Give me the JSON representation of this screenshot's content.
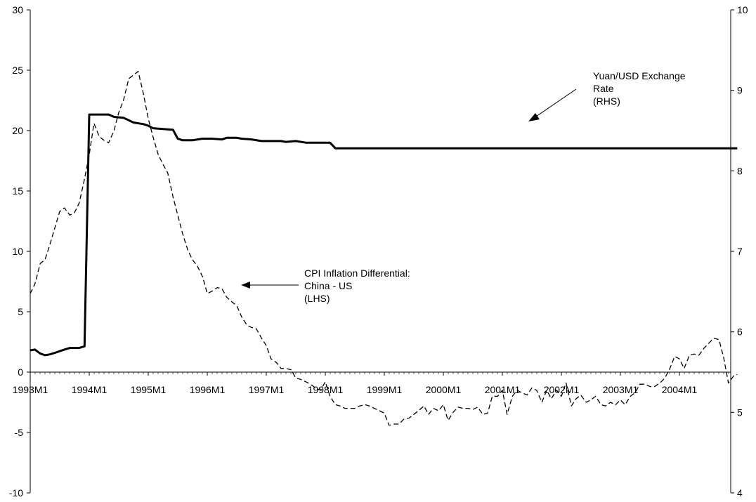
{
  "chart_data": {
    "type": "line",
    "x_ticks": [
      "1993M1",
      "1994M1",
      "1995M1",
      "1996M1",
      "1997M1",
      "1998M1",
      "1999M1",
      "2000M1",
      "2001M1",
      "2002M1",
      "2003M1",
      "2004M1"
    ],
    "left_axis": {
      "ylim": [
        -10,
        30
      ],
      "ticks": [
        "30",
        "25",
        "20",
        "15",
        "10",
        "5",
        "0",
        "-5",
        "-10"
      ]
    },
    "right_axis": {
      "ylim": [
        4,
        10
      ],
      "ticks": [
        "10",
        "9",
        "8",
        "7",
        "6",
        "5",
        "4"
      ]
    },
    "annotations": [
      {
        "lines": [
          "Yuan/USD Exchange",
          "Rate",
          "(RHS)"
        ]
      },
      {
        "lines": [
          "CPI Inflation Differential:",
          "China - US",
          "(LHS)"
        ]
      }
    ],
    "series": [
      {
        "axis": "right",
        "style": "solid",
        "points": [
          [
            1993.0,
            5.77
          ],
          [
            1993.08,
            5.78
          ],
          [
            1993.17,
            5.73
          ],
          [
            1993.25,
            5.71
          ],
          [
            1993.33,
            5.72
          ],
          [
            1993.42,
            5.74
          ],
          [
            1993.5,
            5.76
          ],
          [
            1993.58,
            5.78
          ],
          [
            1993.67,
            5.8
          ],
          [
            1993.75,
            5.8
          ],
          [
            1993.83,
            5.8
          ],
          [
            1993.92,
            5.82
          ],
          [
            1994.0,
            8.7
          ],
          [
            1994.17,
            8.7
          ],
          [
            1994.33,
            8.7
          ],
          [
            1994.42,
            8.67
          ],
          [
            1994.58,
            8.66
          ],
          [
            1994.75,
            8.6
          ],
          [
            1994.92,
            8.58
          ],
          [
            1995.0,
            8.56
          ],
          [
            1995.08,
            8.53
          ],
          [
            1995.25,
            8.52
          ],
          [
            1995.42,
            8.51
          ],
          [
            1995.5,
            8.4
          ],
          [
            1995.58,
            8.38
          ],
          [
            1995.75,
            8.38
          ],
          [
            1995.92,
            8.4
          ],
          [
            1996.08,
            8.4
          ],
          [
            1996.25,
            8.39
          ],
          [
            1996.33,
            8.41
          ],
          [
            1996.5,
            8.41
          ],
          [
            1996.58,
            8.4
          ],
          [
            1996.75,
            8.39
          ],
          [
            1996.92,
            8.37
          ],
          [
            1997.08,
            8.37
          ],
          [
            1997.25,
            8.37
          ],
          [
            1997.33,
            8.36
          ],
          [
            1997.5,
            8.37
          ],
          [
            1997.67,
            8.35
          ],
          [
            1997.83,
            8.35
          ],
          [
            1998.0,
            8.35
          ],
          [
            1998.08,
            8.35
          ],
          [
            1998.17,
            8.28
          ],
          [
            2000.0,
            8.28
          ],
          [
            2002.0,
            8.28
          ],
          [
            2004.0,
            8.28
          ],
          [
            2004.98,
            8.28
          ]
        ]
      },
      {
        "axis": "left",
        "style": "dashed",
        "points": [
          [
            1993.0,
            6.5
          ],
          [
            1993.08,
            7.3
          ],
          [
            1993.17,
            9.0
          ],
          [
            1993.25,
            9.3
          ],
          [
            1993.33,
            10.5
          ],
          [
            1993.42,
            12.0
          ],
          [
            1993.5,
            13.3
          ],
          [
            1993.58,
            13.6
          ],
          [
            1993.67,
            13.0
          ],
          [
            1993.75,
            13.2
          ],
          [
            1993.83,
            14.0
          ],
          [
            1993.92,
            16.0
          ],
          [
            1994.0,
            18.0
          ],
          [
            1994.08,
            20.6
          ],
          [
            1994.17,
            19.5
          ],
          [
            1994.25,
            19.2
          ],
          [
            1994.33,
            19.0
          ],
          [
            1994.42,
            20.0
          ],
          [
            1994.5,
            21.5
          ],
          [
            1994.58,
            22.5
          ],
          [
            1994.67,
            24.3
          ],
          [
            1994.75,
            24.6
          ],
          [
            1994.83,
            24.9
          ],
          [
            1994.92,
            23.0
          ],
          [
            1995.0,
            21.0
          ],
          [
            1995.08,
            19.5
          ],
          [
            1995.17,
            18.0
          ],
          [
            1995.25,
            17.2
          ],
          [
            1995.33,
            16.5
          ],
          [
            1995.42,
            14.5
          ],
          [
            1995.5,
            13.0
          ],
          [
            1995.58,
            11.5
          ],
          [
            1995.67,
            10.1
          ],
          [
            1995.75,
            9.3
          ],
          [
            1995.83,
            8.8
          ],
          [
            1995.92,
            7.9
          ],
          [
            1996.0,
            6.5
          ],
          [
            1996.08,
            6.7
          ],
          [
            1996.17,
            7.0
          ],
          [
            1996.25,
            6.9
          ],
          [
            1996.33,
            6.2
          ],
          [
            1996.42,
            5.8
          ],
          [
            1996.5,
            5.5
          ],
          [
            1996.58,
            4.6
          ],
          [
            1996.67,
            3.9
          ],
          [
            1996.75,
            3.7
          ],
          [
            1996.83,
            3.6
          ],
          [
            1996.92,
            2.8
          ],
          [
            1997.0,
            2.2
          ],
          [
            1997.08,
            1.1
          ],
          [
            1997.17,
            0.8
          ],
          [
            1997.25,
            0.3
          ],
          [
            1997.33,
            0.3
          ],
          [
            1997.42,
            0.2
          ],
          [
            1997.5,
            -0.5
          ],
          [
            1997.58,
            -0.6
          ],
          [
            1997.67,
            -0.8
          ],
          [
            1997.75,
            -1.0
          ],
          [
            1997.83,
            -1.3
          ],
          [
            1997.92,
            -1.5
          ],
          [
            1998.0,
            -0.8
          ],
          [
            1998.08,
            -2.0
          ],
          [
            1998.17,
            -2.7
          ],
          [
            1998.25,
            -2.8
          ],
          [
            1998.33,
            -3.0
          ],
          [
            1998.42,
            -3.0
          ],
          [
            1998.5,
            -3.0
          ],
          [
            1998.58,
            -2.8
          ],
          [
            1998.67,
            -2.7
          ],
          [
            1998.75,
            -2.8
          ],
          [
            1998.83,
            -3.0
          ],
          [
            1998.92,
            -3.2
          ],
          [
            1999.0,
            -3.4
          ],
          [
            1999.08,
            -4.4
          ],
          [
            1999.17,
            -4.3
          ],
          [
            1999.25,
            -4.3
          ],
          [
            1999.33,
            -3.9
          ],
          [
            1999.42,
            -3.8
          ],
          [
            1999.5,
            -3.5
          ],
          [
            1999.58,
            -3.2
          ],
          [
            1999.67,
            -2.8
          ],
          [
            1999.75,
            -3.5
          ],
          [
            1999.83,
            -3.0
          ],
          [
            1999.92,
            -3.2
          ],
          [
            2000.0,
            -2.7
          ],
          [
            2000.08,
            -4.0
          ],
          [
            2000.17,
            -3.3
          ],
          [
            2000.25,
            -2.9
          ],
          [
            2000.33,
            -3.0
          ],
          [
            2000.42,
            -3.0
          ],
          [
            2000.5,
            -3.1
          ],
          [
            2000.58,
            -2.9
          ],
          [
            2000.67,
            -3.5
          ],
          [
            2000.75,
            -3.4
          ],
          [
            2000.83,
            -2.0
          ],
          [
            2000.92,
            -2.0
          ],
          [
            2001.0,
            -1.5
          ],
          [
            2001.08,
            -3.5
          ],
          [
            2001.17,
            -2.0
          ],
          [
            2001.25,
            -1.5
          ],
          [
            2001.33,
            -1.7
          ],
          [
            2001.42,
            -1.9
          ],
          [
            2001.5,
            -1.3
          ],
          [
            2001.58,
            -1.5
          ],
          [
            2001.67,
            -2.5
          ],
          [
            2001.75,
            -1.5
          ],
          [
            2001.83,
            -2.2
          ],
          [
            2001.92,
            -1.5
          ],
          [
            2002.0,
            -2.0
          ],
          [
            2002.08,
            -0.9
          ],
          [
            2002.17,
            -2.8
          ],
          [
            2002.25,
            -2.2
          ],
          [
            2002.33,
            -1.9
          ],
          [
            2002.42,
            -2.5
          ],
          [
            2002.5,
            -2.3
          ],
          [
            2002.58,
            -2.0
          ],
          [
            2002.67,
            -2.7
          ],
          [
            2002.75,
            -2.8
          ],
          [
            2002.83,
            -2.5
          ],
          [
            2002.92,
            -2.7
          ],
          [
            2003.0,
            -2.3
          ],
          [
            2003.08,
            -2.7
          ],
          [
            2003.17,
            -2.0
          ],
          [
            2003.25,
            -1.7
          ],
          [
            2003.33,
            -1.0
          ],
          [
            2003.42,
            -1.0
          ],
          [
            2003.5,
            -1.2
          ],
          [
            2003.58,
            -1.2
          ],
          [
            2003.67,
            -0.9
          ],
          [
            2003.75,
            -0.5
          ],
          [
            2003.83,
            0.2
          ],
          [
            2003.92,
            1.3
          ],
          [
            2004.0,
            1.1
          ],
          [
            2004.08,
            0.3
          ],
          [
            2004.17,
            1.4
          ],
          [
            2004.25,
            1.5
          ],
          [
            2004.33,
            1.4
          ],
          [
            2004.42,
            2.0
          ],
          [
            2004.5,
            2.4
          ],
          [
            2004.58,
            2.8
          ],
          [
            2004.67,
            2.7
          ],
          [
            2004.75,
            1.2
          ],
          [
            2004.83,
            -0.9
          ],
          [
            2004.92,
            -0.3
          ],
          [
            2004.98,
            -0.2
          ]
        ]
      }
    ]
  }
}
